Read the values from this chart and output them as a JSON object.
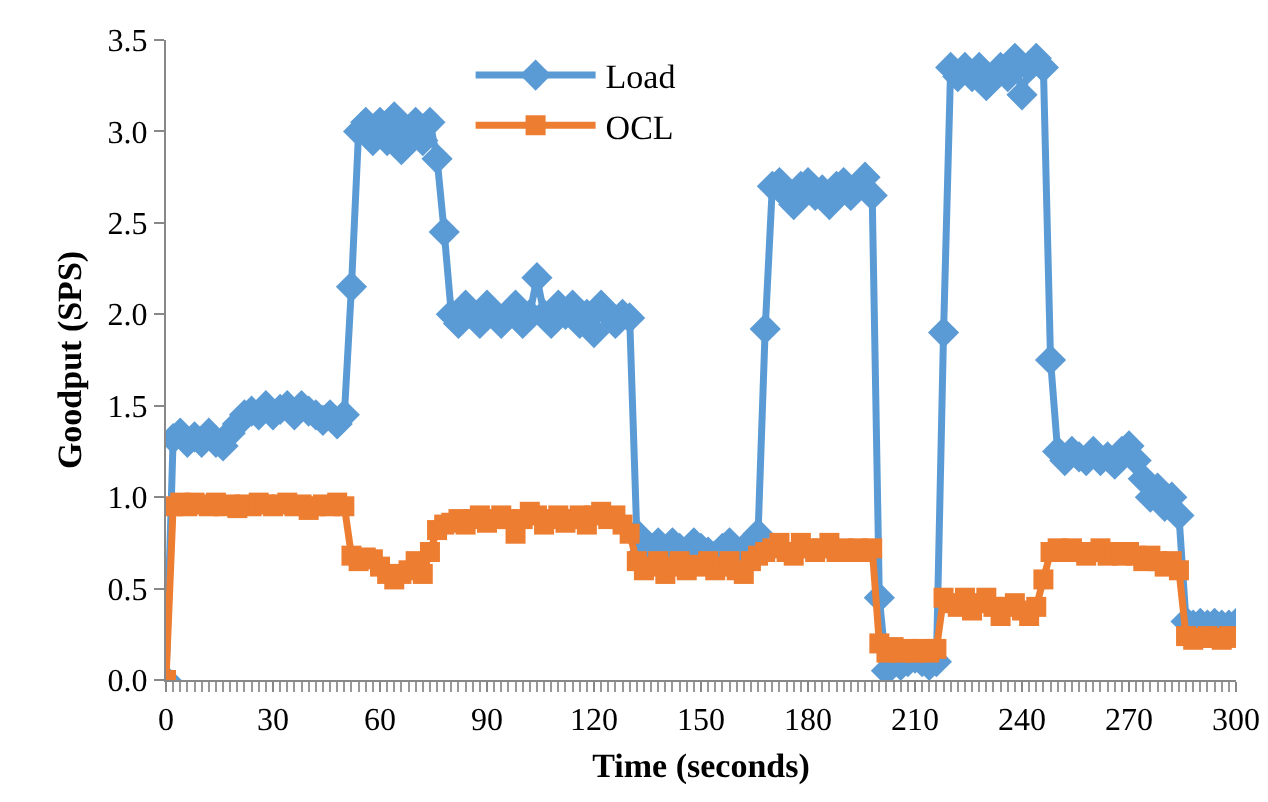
{
  "chart_data": {
    "type": "line",
    "xlabel": "Time (seconds)",
    "ylabel": "Goodput (SPS)",
    "x": [
      0,
      2,
      4,
      6,
      8,
      10,
      12,
      14,
      16,
      18,
      20,
      22,
      24,
      26,
      28,
      30,
      32,
      34,
      36,
      38,
      40,
      42,
      44,
      46,
      48,
      50,
      52,
      54,
      56,
      58,
      60,
      62,
      64,
      66,
      68,
      70,
      72,
      74,
      76,
      78,
      80,
      82,
      84,
      86,
      88,
      90,
      92,
      94,
      96,
      98,
      100,
      102,
      104,
      106,
      108,
      110,
      112,
      114,
      116,
      118,
      120,
      122,
      124,
      126,
      128,
      130,
      132,
      134,
      136,
      138,
      140,
      142,
      144,
      146,
      148,
      150,
      152,
      154,
      156,
      158,
      160,
      162,
      164,
      166,
      168,
      170,
      172,
      174,
      176,
      178,
      180,
      182,
      184,
      186,
      188,
      190,
      192,
      194,
      196,
      198,
      200,
      202,
      204,
      206,
      208,
      210,
      212,
      214,
      216,
      218,
      220,
      222,
      224,
      226,
      228,
      230,
      232,
      234,
      236,
      238,
      240,
      242,
      244,
      246,
      248,
      250,
      252,
      254,
      256,
      258,
      260,
      262,
      264,
      266,
      268,
      270,
      272,
      274,
      276,
      278,
      280,
      282,
      284,
      286,
      288,
      290,
      292,
      294,
      296,
      298,
      300
    ],
    "series": [
      {
        "name": "Load",
        "color": "#5b9bd5",
        "marker": "diamond",
        "values": [
          0,
          1.32,
          1.35,
          1.3,
          1.33,
          1.3,
          1.35,
          1.3,
          1.28,
          1.35,
          1.4,
          1.45,
          1.47,
          1.45,
          1.5,
          1.45,
          1.48,
          1.5,
          1.45,
          1.5,
          1.47,
          1.45,
          1.42,
          1.45,
          1.4,
          1.45,
          2.15,
          3.0,
          3.05,
          2.95,
          3.05,
          2.95,
          3.08,
          2.9,
          3.0,
          3.05,
          2.95,
          3.05,
          2.85,
          2.45,
          2.0,
          1.95,
          2.05,
          2.0,
          1.95,
          2.05,
          2.0,
          1.95,
          2.0,
          2.05,
          1.95,
          2.0,
          2.2,
          2.0,
          1.95,
          2.05,
          2.0,
          2.05,
          1.95,
          2.0,
          1.9,
          2.05,
          2.0,
          1.95,
          2.0,
          1.98,
          0.8,
          0.7,
          0.72,
          0.75,
          0.7,
          0.75,
          0.72,
          0.7,
          0.75,
          0.72,
          0.7,
          0.68,
          0.72,
          0.75,
          0.7,
          0.72,
          0.75,
          0.8,
          1.92,
          2.7,
          2.72,
          2.65,
          2.6,
          2.7,
          2.72,
          2.65,
          2.68,
          2.6,
          2.7,
          2.72,
          2.65,
          2.7,
          2.75,
          2.65,
          0.45,
          0.05,
          0.1,
          0.08,
          0.1,
          0.12,
          0.1,
          0.08,
          0.1,
          1.9,
          3.35,
          3.3,
          3.35,
          3.3,
          3.35,
          3.25,
          3.3,
          3.35,
          3.3,
          3.4,
          3.2,
          3.35,
          3.4,
          3.35,
          1.75,
          1.25,
          1.2,
          1.25,
          1.22,
          1.2,
          1.25,
          1.2,
          1.22,
          1.18,
          1.25,
          1.28,
          1.2,
          1.1,
          1.0,
          1.05,
          0.95,
          1.0,
          0.9,
          0.32,
          0.3,
          0.31,
          0.3,
          0.31,
          0.3,
          0.3,
          0.31
        ]
      },
      {
        "name": "OCL",
        "color": "#ed7d31",
        "marker": "square",
        "values": [
          0,
          0.95,
          0.97,
          0.95,
          0.97,
          0.96,
          0.95,
          0.97,
          0.95,
          0.96,
          0.94,
          0.96,
          0.95,
          0.97,
          0.96,
          0.95,
          0.96,
          0.97,
          0.95,
          0.96,
          0.93,
          0.95,
          0.96,
          0.95,
          0.97,
          0.95,
          0.68,
          0.65,
          0.67,
          0.66,
          0.62,
          0.58,
          0.55,
          0.58,
          0.6,
          0.65,
          0.58,
          0.7,
          0.82,
          0.85,
          0.86,
          0.88,
          0.85,
          0.88,
          0.9,
          0.86,
          0.88,
          0.9,
          0.88,
          0.8,
          0.88,
          0.92,
          0.9,
          0.85,
          0.88,
          0.9,
          0.86,
          0.88,
          0.9,
          0.85,
          0.9,
          0.92,
          0.88,
          0.9,
          0.85,
          0.8,
          0.65,
          0.6,
          0.62,
          0.65,
          0.58,
          0.62,
          0.65,
          0.6,
          0.63,
          0.62,
          0.65,
          0.6,
          0.62,
          0.65,
          0.6,
          0.58,
          0.65,
          0.68,
          0.7,
          0.72,
          0.75,
          0.7,
          0.68,
          0.75,
          0.72,
          0.7,
          0.72,
          0.75,
          0.7,
          0.72,
          0.7,
          0.72,
          0.7,
          0.72,
          0.2,
          0.15,
          0.18,
          0.15,
          0.17,
          0.15,
          0.17,
          0.15,
          0.17,
          0.45,
          0.42,
          0.4,
          0.45,
          0.38,
          0.42,
          0.45,
          0.4,
          0.35,
          0.4,
          0.42,
          0.38,
          0.35,
          0.4,
          0.55,
          0.7,
          0.72,
          0.7,
          0.72,
          0.7,
          0.68,
          0.7,
          0.72,
          0.68,
          0.7,
          0.68,
          0.7,
          0.68,
          0.65,
          0.68,
          0.65,
          0.62,
          0.65,
          0.6,
          0.24,
          0.22,
          0.23,
          0.24,
          0.23,
          0.22,
          0.24,
          0.23
        ]
      }
    ],
    "xlim": [
      0,
      300
    ],
    "xticks": [
      0,
      30,
      60,
      90,
      120,
      150,
      180,
      210,
      240,
      270,
      300
    ],
    "ylim": [
      0,
      3.5
    ],
    "yticks": [
      {
        "value": 0,
        "label": "0.0"
      },
      {
        "value": 0.5,
        "label": "0.5"
      },
      {
        "value": 1,
        "label": "1.0"
      },
      {
        "value": 1.5,
        "label": "1.5"
      },
      {
        "value": 2,
        "label": "2.0"
      },
      {
        "value": 2.5,
        "label": "2.5"
      },
      {
        "value": 3,
        "label": "3.0"
      },
      {
        "value": 3.5,
        "label": "3.5"
      }
    ],
    "grid": false,
    "legend": "top",
    "line_style": "solid"
  }
}
